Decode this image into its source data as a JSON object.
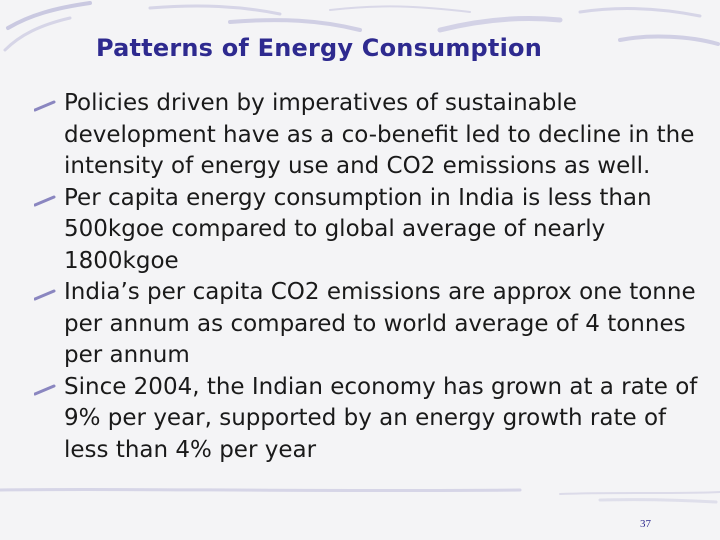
{
  "slide": {
    "title": "Patterns of  Energy Consumption",
    "bullets": [
      "Policies driven by imperatives of sustainable development have as a co-benefit led to decline in the intensity of energy use and CO2 emissions as well.",
      "Per capita energy consumption in India is less than 500kgoe compared to global average of nearly 1800kgoe",
      "India’s per capita CO2 emissions are approx one tonne  per annum as compared to world average of 4 tonnes per annum",
      "Since 2004, the Indian economy has grown at a rate of 9% per year, supported by an energy growth rate of less than 4% per year"
    ],
    "page_number": "37"
  },
  "theme": {
    "title_color": "#2e2a8f",
    "text_color": "#1a1a1a",
    "background": "#f4f4f6",
    "accent": "#8a86c0"
  }
}
